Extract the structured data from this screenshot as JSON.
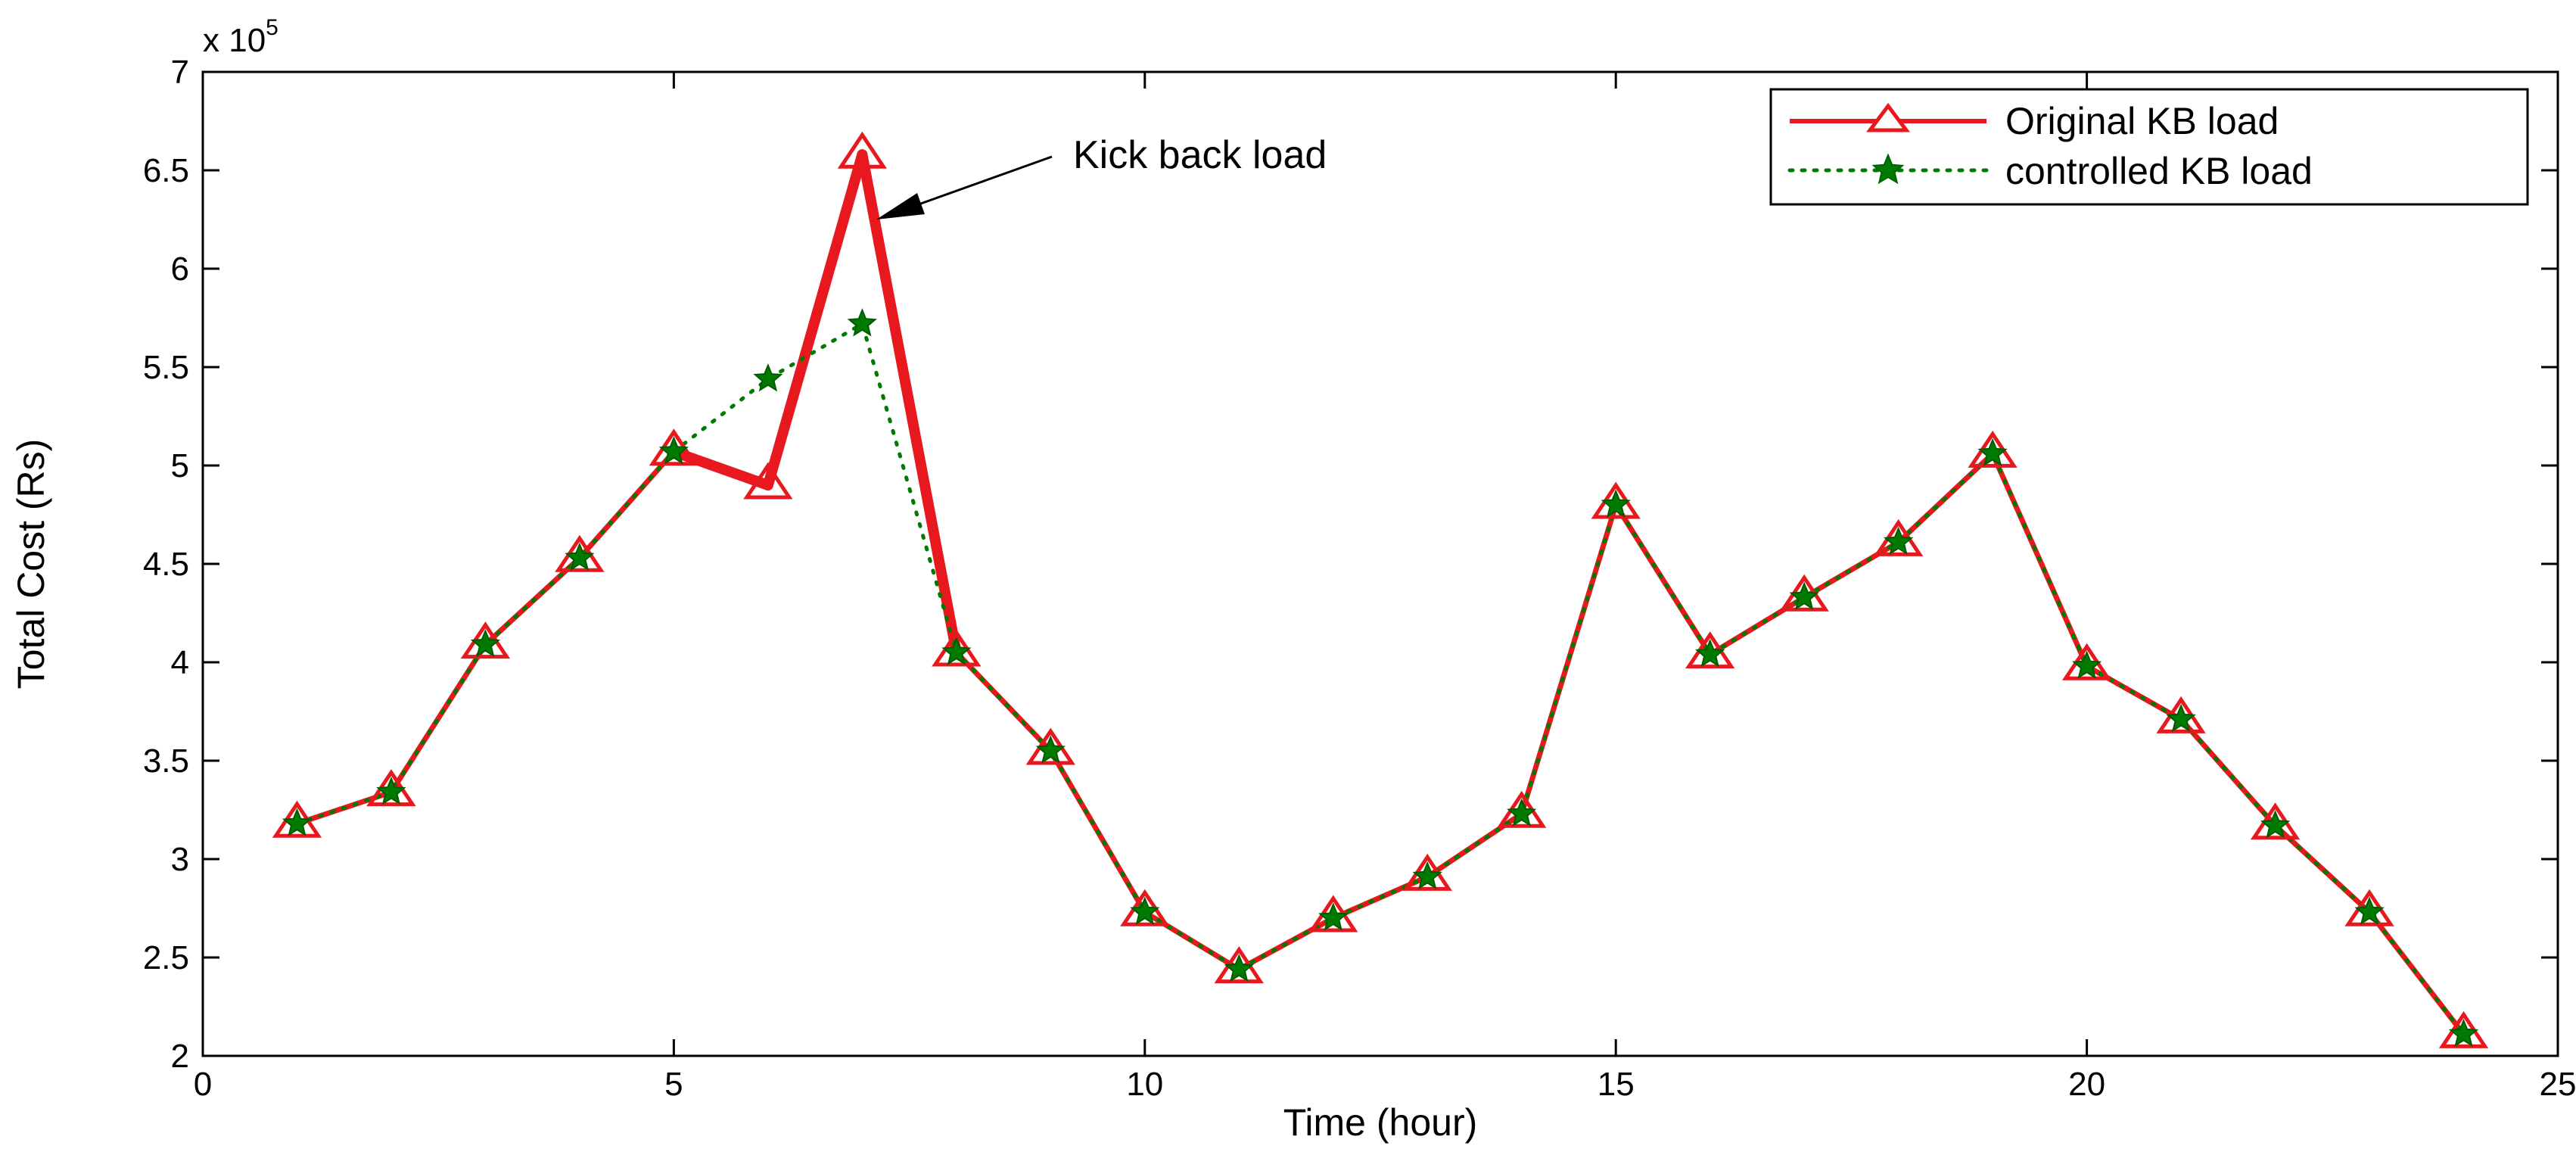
{
  "chart_data": {
    "type": "line",
    "xlabel": "Time (hour)",
    "ylabel": "Total Cost (Rs)",
    "y_multiplier": "x 10",
    "y_multiplier_exp": "5",
    "xlim": [
      0,
      25
    ],
    "ylim": [
      2,
      7
    ],
    "xticks": [
      "0",
      "5",
      "10",
      "15",
      "20",
      "25"
    ],
    "yticks": [
      "2",
      "2.5",
      "3",
      "3.5",
      "4",
      "4.5",
      "5",
      "5.5",
      "6",
      "6.5",
      "7"
    ],
    "grid": false,
    "legend_position": "top-right",
    "x": [
      1,
      2,
      3,
      4,
      5,
      6,
      7,
      8,
      9,
      10,
      11,
      12,
      13,
      14,
      15,
      16,
      17,
      18,
      19,
      20,
      21,
      22,
      23,
      24
    ],
    "series": [
      {
        "name": "Original KB load",
        "color": "#e8191e",
        "marker": "triangle",
        "line_style": "solid",
        "values": [
          3.18,
          3.34,
          4.09,
          4.53,
          5.07,
          4.9,
          6.58,
          4.05,
          3.55,
          2.73,
          2.44,
          2.7,
          2.91,
          3.23,
          4.8,
          4.04,
          4.33,
          4.61,
          5.06,
          3.98,
          3.71,
          3.17,
          2.73,
          2.11
        ]
      },
      {
        "name": "controlled KB load",
        "color": "#007a00",
        "marker": "star",
        "line_style": "dotted",
        "values": [
          3.18,
          3.34,
          4.09,
          4.53,
          5.07,
          5.44,
          5.72,
          4.05,
          3.55,
          2.73,
          2.44,
          2.7,
          2.91,
          3.23,
          4.8,
          4.04,
          4.33,
          4.61,
          5.06,
          3.98,
          3.71,
          3.17,
          2.73,
          2.11
        ]
      }
    ],
    "annotations": [
      {
        "text": "Kick back load",
        "x": 7,
        "y": 6.58
      }
    ]
  }
}
